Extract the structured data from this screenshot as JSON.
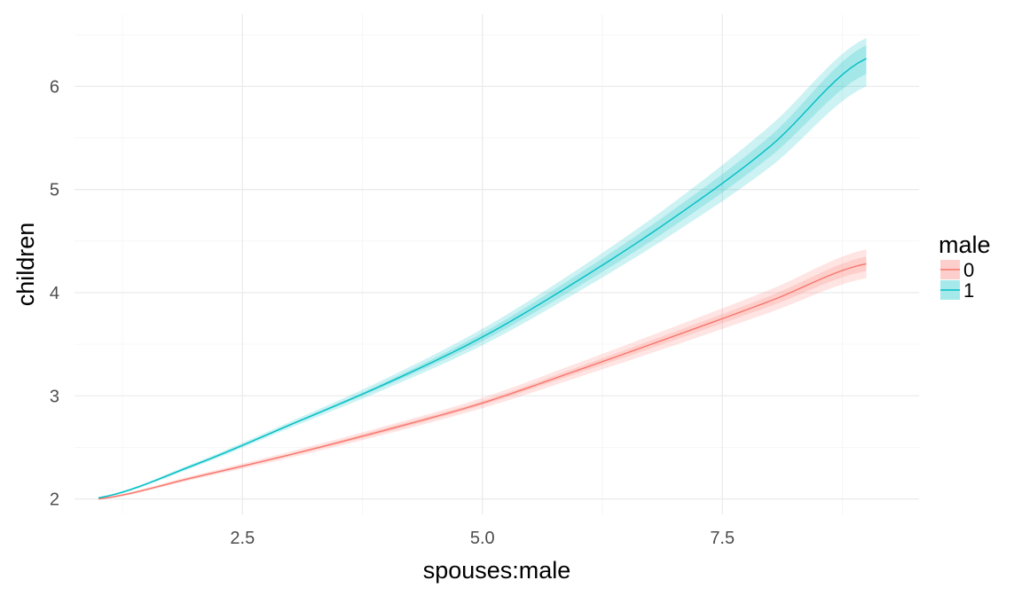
{
  "chart_data": {
    "type": "line",
    "xlabel": "spouses:male",
    "ylabel": "children",
    "xlim": [
      0.75,
      9.55
    ],
    "ylim": [
      1.85,
      6.7
    ],
    "x_ticks": [
      2.5,
      5.0,
      7.5
    ],
    "x_tick_labels": [
      "2.5",
      "5.0",
      "7.5"
    ],
    "y_ticks": [
      2,
      3,
      4,
      5,
      6
    ],
    "y_tick_labels": [
      "2",
      "3",
      "4",
      "5",
      "6"
    ],
    "grid": true,
    "legend": {
      "title": "male",
      "placement": "right"
    },
    "x": [
      1,
      2,
      3,
      4,
      5,
      6,
      7,
      8,
      9
    ],
    "series": [
      {
        "name": "0",
        "color": "#F8766D",
        "values": [
          2.0,
          2.21,
          2.43,
          2.67,
          2.93,
          3.25,
          3.58,
          3.92,
          4.28
        ],
        "lower_outer": [
          1.99,
          2.19,
          2.4,
          2.63,
          2.88,
          3.18,
          3.49,
          3.81,
          4.14
        ],
        "upper_outer": [
          2.01,
          2.23,
          2.46,
          2.71,
          2.98,
          3.32,
          3.67,
          4.03,
          4.42
        ],
        "lower_inner": [
          1.995,
          2.2,
          2.42,
          2.65,
          2.91,
          3.22,
          3.54,
          3.87,
          4.21
        ],
        "upper_inner": [
          2.005,
          2.22,
          2.44,
          2.69,
          2.95,
          3.28,
          3.62,
          3.97,
          4.35
        ]
      },
      {
        "name": "1",
        "color": "#00BFC4",
        "values": [
          2.01,
          2.33,
          2.72,
          3.12,
          3.57,
          4.12,
          4.73,
          5.42,
          6.27
        ],
        "lower_outer": [
          2.0,
          2.31,
          2.69,
          3.07,
          3.49,
          4.01,
          4.58,
          5.22,
          6.0
        ],
        "upper_outer": [
          2.02,
          2.35,
          2.75,
          3.17,
          3.65,
          4.23,
          4.88,
          5.62,
          6.47
        ],
        "lower_inner": [
          2.005,
          2.32,
          2.71,
          3.1,
          3.53,
          4.06,
          4.65,
          5.32,
          6.12
        ],
        "upper_inner": [
          2.015,
          2.34,
          2.73,
          3.14,
          3.61,
          4.18,
          4.81,
          5.52,
          6.4
        ]
      }
    ]
  }
}
